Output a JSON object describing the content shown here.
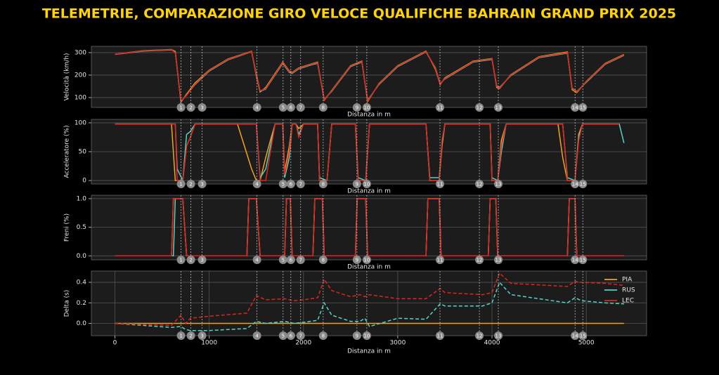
{
  "chart_data": [
    {
      "type": "line",
      "title": "TELEMETRIE, COMPARAZIONE GIRO VELOCE QUALIFICHE BAHRAIN GRAND PRIX 2025",
      "ylabel": "Velocità (km/h)",
      "xlabel": "Distanza in m",
      "x": [
        0,
        300,
        600,
        640,
        700,
        760,
        850,
        1000,
        1200,
        1450,
        1500,
        1540,
        1600,
        1780,
        1850,
        1880,
        1950,
        2100,
        2150,
        2220,
        2300,
        2500,
        2620,
        2680,
        2800,
        3000,
        3300,
        3400,
        3450,
        3500,
        3800,
        4000,
        4050,
        4080,
        4200,
        4500,
        4800,
        4850,
        4900,
        5000,
        5200,
        5400
      ],
      "series": [
        {
          "name": "PIA",
          "color": "#f5a21b",
          "values": [
            293,
            309,
            314,
            305,
            80,
            115,
            165,
            222,
            272,
            306,
            195,
            125,
            145,
            258,
            218,
            212,
            232,
            252,
            258,
            88,
            132,
            242,
            262,
            82,
            162,
            242,
            307,
            225,
            158,
            188,
            262,
            274,
            145,
            140,
            202,
            282,
            303,
            135,
            122,
            172,
            252,
            292
          ]
        },
        {
          "name": "RUS",
          "color": "#4fd6c8",
          "values": [
            292,
            307,
            312,
            302,
            82,
            112,
            158,
            218,
            268,
            304,
            205,
            128,
            138,
            252,
            212,
            208,
            228,
            248,
            252,
            92,
            128,
            238,
            258,
            88,
            158,
            238,
            303,
            232,
            162,
            183,
            258,
            270,
            152,
            145,
            198,
            278,
            298,
            142,
            127,
            168,
            248,
            288
          ]
        },
        {
          "name": "LEC",
          "color": "#e3231d",
          "values": [
            293,
            308,
            313,
            300,
            85,
            110,
            160,
            220,
            270,
            305,
            200,
            130,
            140,
            255,
            215,
            210,
            230,
            250,
            255,
            90,
            130,
            240,
            260,
            85,
            160,
            240,
            305,
            230,
            160,
            185,
            260,
            272,
            150,
            142,
            200,
            280,
            300,
            140,
            125,
            170,
            250,
            290
          ]
        }
      ],
      "xlim": [
        -250,
        5640
      ],
      "ylim": [
        56,
        328
      ],
      "yticks": [
        100,
        200,
        300
      ],
      "grid": true,
      "corners": {
        "labels": [
          1,
          2,
          3,
          4,
          5,
          6,
          7,
          8,
          9,
          10,
          11,
          12,
          13,
          14,
          15
        ],
        "x": [
          701,
          806,
          925,
          1507,
          1784,
          1866,
          1970,
          2209,
          2567,
          2672,
          3448,
          3866,
          4067,
          4881,
          4963
        ]
      }
    },
    {
      "type": "line",
      "ylabel": "Acceleratore (%)",
      "xlabel": "Distanza in m",
      "x": [
        0,
        600,
        640,
        660,
        720,
        760,
        800,
        850,
        1300,
        1450,
        1500,
        1540,
        1600,
        1650,
        1700,
        1780,
        1800,
        1850,
        1880,
        1920,
        1950,
        2000,
        2150,
        2170,
        2250,
        2300,
        2550,
        2580,
        2660,
        2700,
        3300,
        3340,
        3440,
        3470,
        3500,
        3980,
        4000,
        4060,
        4100,
        4150,
        4700,
        4750,
        4800,
        4880,
        4920,
        4960,
        5350,
        5400
      ],
      "series": [
        {
          "name": "PIA",
          "color": "#f5a21b",
          "values": [
            98,
            98,
            0,
            0,
            0,
            60,
            75,
            98,
            98,
            20,
            0,
            0,
            40,
            70,
            98,
            98,
            15,
            60,
            98,
            98,
            90,
            98,
            98,
            0,
            0,
            98,
            98,
            0,
            0,
            98,
            98,
            0,
            0,
            60,
            98,
            98,
            0,
            0,
            70,
            98,
            98,
            40,
            0,
            0,
            80,
            98,
            98,
            null
          ]
        },
        {
          "name": "RUS",
          "color": "#4fd6c8",
          "values": [
            98,
            98,
            98,
            20,
            0,
            80,
            85,
            98,
            98,
            98,
            98,
            5,
            20,
            60,
            98,
            98,
            5,
            40,
            98,
            98,
            80,
            98,
            98,
            5,
            0,
            98,
            98,
            5,
            0,
            98,
            98,
            5,
            5,
            65,
            98,
            98,
            5,
            0,
            50,
            98,
            98,
            98,
            5,
            0,
            75,
            98,
            98,
            65
          ]
        },
        {
          "name": "LEC",
          "color": "#e3231d",
          "values": [
            98,
            98,
            98,
            0,
            0,
            60,
            75,
            98,
            98,
            98,
            98,
            0,
            0,
            50,
            98,
            98,
            10,
            50,
            98,
            98,
            75,
            98,
            98,
            0,
            0,
            98,
            98,
            0,
            0,
            98,
            98,
            0,
            0,
            70,
            98,
            98,
            0,
            0,
            60,
            98,
            98,
            98,
            0,
            0,
            70,
            98,
            98,
            null
          ]
        }
      ],
      "xlim": [
        -250,
        5640
      ],
      "ylim": [
        -6,
        106
      ],
      "yticks": [
        0,
        50,
        100
      ],
      "grid": true,
      "corners": {
        "labels": [
          1,
          2,
          3,
          4,
          5,
          6,
          7,
          8,
          9,
          10,
          11,
          12,
          13,
          14,
          15
        ],
        "x": [
          701,
          806,
          925,
          1507,
          1784,
          1866,
          1970,
          2209,
          2567,
          2672,
          3448,
          3866,
          4067,
          4881,
          4963
        ]
      }
    },
    {
      "type": "line",
      "ylabel": "Freni (%)",
      "xlabel": "Distanza in m",
      "x": [
        0,
        600,
        620,
        640,
        720,
        760,
        1400,
        1420,
        1500,
        1540,
        1800,
        1820,
        1860,
        1880,
        2100,
        2120,
        2200,
        2220,
        2550,
        2570,
        2660,
        2680,
        3300,
        3320,
        3440,
        3460,
        3960,
        3980,
        4040,
        4060,
        4800,
        4820,
        4880,
        4900,
        5400
      ],
      "series": [
        {
          "name": "PIA",
          "color": "#f5a21b",
          "values": [
            0,
            0,
            1,
            1,
            1,
            0,
            0,
            1,
            1,
            0,
            0,
            1,
            1,
            0,
            0,
            1,
            1,
            0,
            0,
            1,
            1,
            0,
            0,
            1,
            1,
            0,
            0,
            1,
            1,
            0,
            0,
            1,
            1,
            0,
            0
          ]
        },
        {
          "name": "RUS",
          "color": "#4fd6c8",
          "values": [
            0,
            0,
            0,
            1,
            1,
            0,
            0,
            1,
            1,
            0,
            0,
            1,
            1,
            0,
            0,
            1,
            1,
            0,
            0,
            1,
            1,
            0,
            0,
            1,
            1,
            0,
            0,
            1,
            1,
            0,
            0,
            1,
            1,
            0,
            0
          ]
        },
        {
          "name": "LEC",
          "color": "#e3231d",
          "values": [
            0,
            0,
            1,
            1,
            1,
            0,
            0,
            1,
            1,
            0,
            0,
            1,
            1,
            0,
            0,
            1,
            1,
            0,
            0,
            1,
            1,
            0,
            0,
            1,
            1,
            0,
            0,
            1,
            1,
            0,
            0,
            1,
            1,
            0,
            0
          ]
        }
      ],
      "xlim": [
        -250,
        5640
      ],
      "ylim": [
        -0.07,
        1.06
      ],
      "yticks": [
        {
          "value": 0,
          "label": "0.0"
        },
        {
          "value": 0.5,
          "label": "0.5"
        },
        {
          "value": 1,
          "label": "1.0"
        }
      ],
      "grid": true,
      "corners": {
        "labels": [
          1,
          2,
          3,
          4,
          5,
          6,
          7,
          8,
          9,
          10,
          11,
          12,
          13,
          14,
          15
        ],
        "x": [
          701,
          806,
          925,
          1507,
          1784,
          1866,
          1970,
          2209,
          2567,
          2672,
          3448,
          3866,
          4067,
          4881,
          4963
        ]
      }
    },
    {
      "type": "line",
      "ylabel": "Delta (s)",
      "xlabel": "Distanza in m",
      "x": [
        0,
        300,
        600,
        700,
        750,
        800,
        1000,
        1400,
        1500,
        1600,
        1800,
        1900,
        2000,
        2150,
        2220,
        2300,
        2500,
        2600,
        2650,
        2700,
        3000,
        3300,
        3450,
        3500,
        3900,
        4000,
        4080,
        4200,
        4800,
        4880,
        4950,
        5200,
        5400
      ],
      "series": [
        {
          "name": "PIA",
          "color": "#f5a21b",
          "line_style": "solid",
          "values": [
            0,
            0,
            0,
            0,
            0,
            0,
            0,
            0,
            0,
            0,
            0,
            0,
            0,
            0,
            0,
            0,
            0,
            0,
            0,
            0,
            0,
            0,
            0,
            0,
            0,
            0,
            0,
            0,
            0,
            0,
            0,
            0,
            0
          ]
        },
        {
          "name": "RUS",
          "color": "#4fd6c8",
          "line_style": "dashed",
          "values": [
            0,
            -0.02,
            -0.04,
            -0.03,
            -0.06,
            -0.07,
            -0.07,
            -0.05,
            0.02,
            0.0,
            0.02,
            0.0,
            0.01,
            0.03,
            0.2,
            0.08,
            0.02,
            0.02,
            0.05,
            -0.03,
            0.05,
            0.04,
            0.19,
            0.17,
            0.17,
            0.2,
            0.4,
            0.28,
            0.2,
            0.25,
            0.22,
            0.2,
            0.19
          ]
        },
        {
          "name": "LEC",
          "color": "#e3231d",
          "line_style": "dashed",
          "values": [
            0,
            -0.01,
            -0.02,
            0.08,
            0.0,
            0.05,
            0.07,
            0.1,
            0.27,
            0.23,
            0.24,
            0.22,
            0.23,
            0.25,
            0.43,
            0.32,
            0.26,
            0.28,
            0.26,
            0.28,
            0.24,
            0.24,
            0.34,
            0.3,
            0.28,
            0.3,
            0.49,
            0.39,
            0.36,
            0.41,
            0.4,
            0.39,
            0.37
          ]
        }
      ],
      "xlim": [
        -250,
        5640
      ],
      "ylim": [
        -0.12,
        0.51
      ],
      "yticks": [
        {
          "value": 0,
          "label": "0.0"
        },
        {
          "value": 0.2,
          "label": "0.2"
        },
        {
          "value": 0.4,
          "label": "0.4"
        }
      ],
      "xticks": [
        0,
        1000,
        2000,
        3000,
        4000,
        5000
      ],
      "grid": true,
      "legend": "upper right",
      "corners": {
        "labels": [
          1,
          2,
          3,
          4,
          5,
          6,
          7,
          8,
          9,
          10,
          11,
          12,
          13,
          14,
          15
        ],
        "x": [
          701,
          806,
          925,
          1507,
          1784,
          1866,
          1970,
          2209,
          2567,
          2672,
          3448,
          3866,
          4067,
          4881,
          4963
        ]
      }
    }
  ]
}
